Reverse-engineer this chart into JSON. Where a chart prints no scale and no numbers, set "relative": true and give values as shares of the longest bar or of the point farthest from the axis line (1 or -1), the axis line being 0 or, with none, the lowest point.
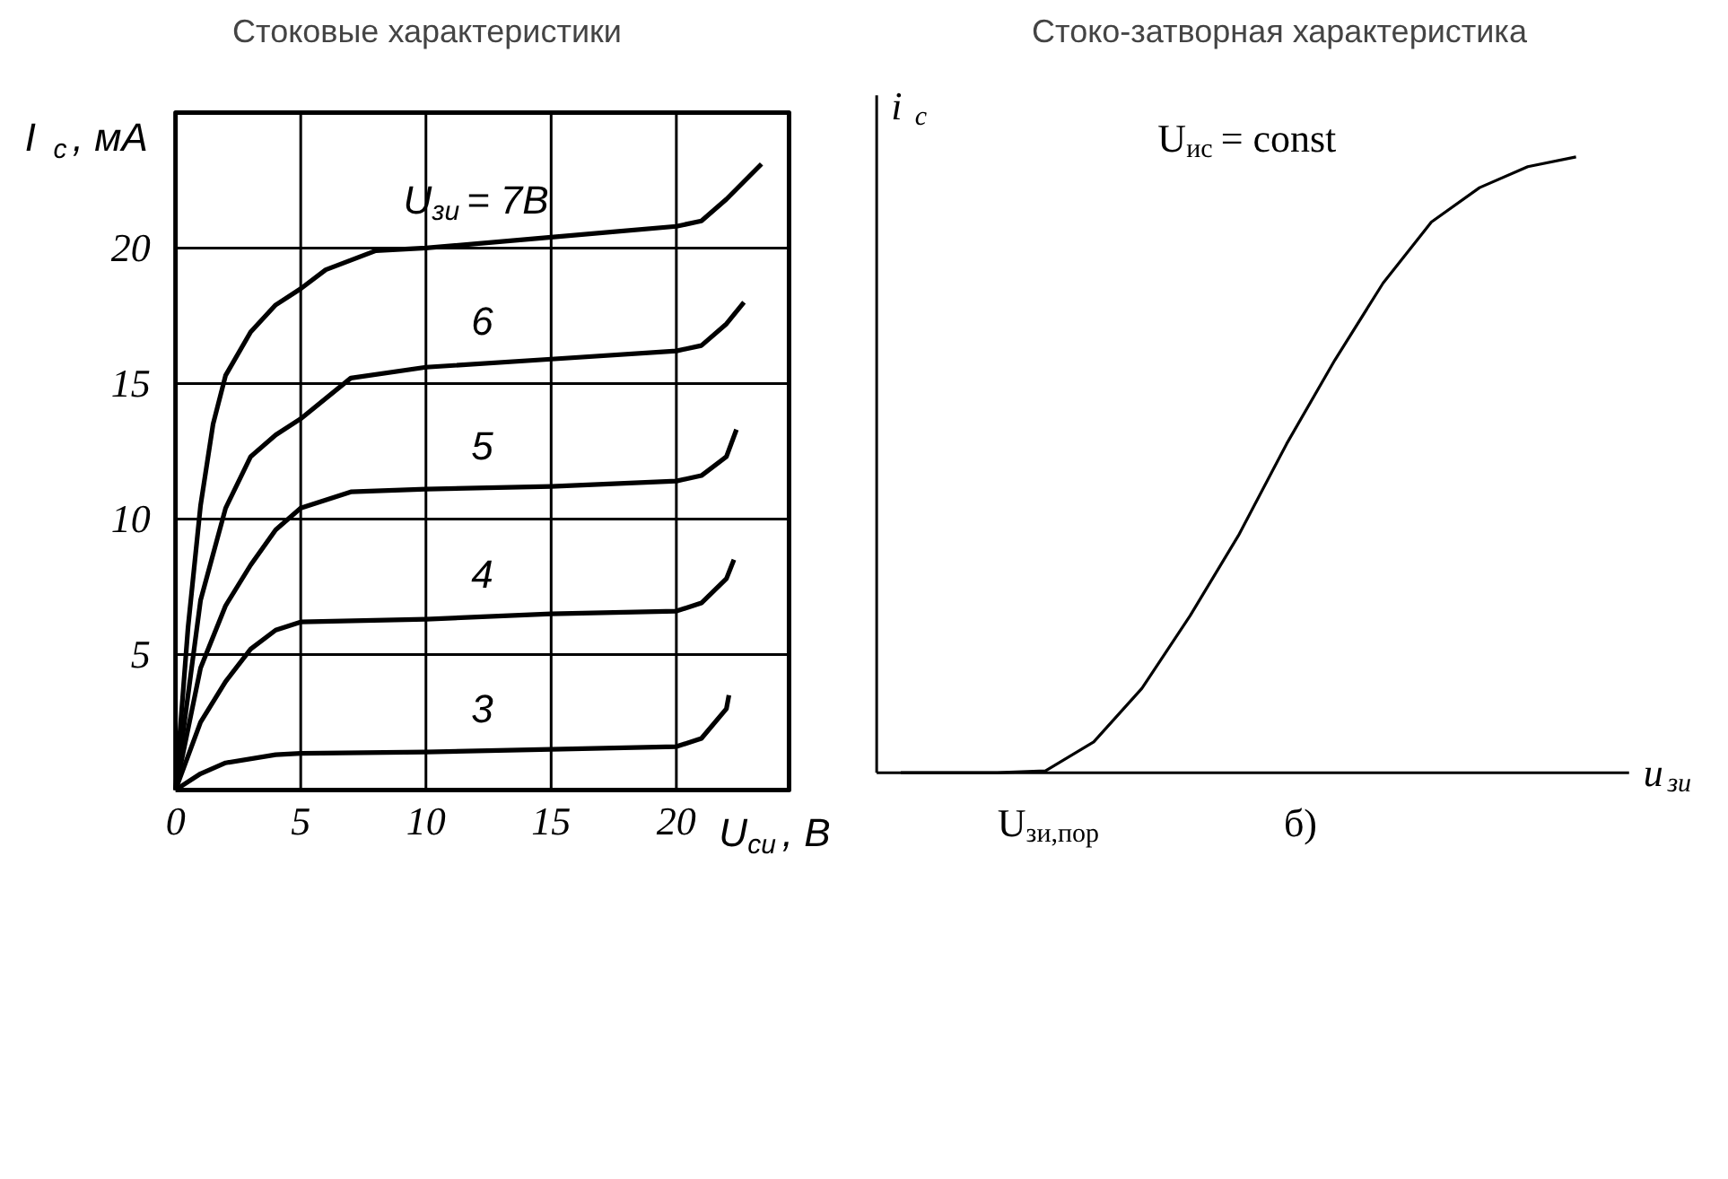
{
  "chart_data": [
    {
      "type": "line",
      "title": "Стоковые характеристики",
      "xlabel": "U$_{си}$, В",
      "ylabel": "I$_{c}$, мA",
      "xlim": [
        0,
        24.5
      ],
      "ylim": [
        0,
        25
      ],
      "xticks": [
        0,
        5,
        10,
        15,
        20
      ],
      "yticks": [
        5,
        10,
        15,
        20
      ],
      "grid": true,
      "series": [
        {
          "name": "U$_{зи}$ = 7В",
          "color": "#000000",
          "x": [
            0,
            0.5,
            1,
            1.5,
            2,
            3,
            4,
            5,
            6,
            8,
            10,
            15,
            20,
            21,
            22,
            23.4
          ],
          "values": [
            0,
            6,
            10.5,
            13.5,
            15.3,
            16.9,
            17.9,
            18.5,
            19.2,
            19.9,
            20,
            20.4,
            20.8,
            21,
            21.8,
            23.1
          ]
        },
        {
          "name": "6",
          "color": "#000000",
          "x": [
            0,
            1,
            2,
            3,
            4,
            5,
            7,
            10,
            15,
            20,
            21,
            22,
            22.7
          ],
          "values": [
            0,
            7,
            10.4,
            12.3,
            13.1,
            13.7,
            15.2,
            15.6,
            15.9,
            16.2,
            16.4,
            17.2,
            18
          ]
        },
        {
          "name": "5",
          "color": "#000000",
          "x": [
            0,
            1,
            2,
            3,
            4,
            5,
            7,
            10,
            15,
            20,
            21,
            22,
            22.4
          ],
          "values": [
            0,
            4.5,
            6.8,
            8.3,
            9.6,
            10.4,
            11,
            11.1,
            11.2,
            11.4,
            11.6,
            12.3,
            13.3
          ]
        },
        {
          "name": "4",
          "color": "#000000",
          "x": [
            0,
            1,
            2,
            3,
            4,
            5,
            10,
            15,
            20,
            21,
            22,
            22.3
          ],
          "values": [
            0,
            2.5,
            4,
            5.2,
            5.9,
            6.2,
            6.3,
            6.5,
            6.6,
            6.9,
            7.8,
            8.5
          ]
        },
        {
          "name": "3",
          "color": "#000000",
          "x": [
            0,
            1,
            2,
            4,
            5,
            10,
            15,
            20,
            21,
            22,
            22.1
          ],
          "values": [
            0,
            0.6,
            1,
            1.3,
            1.35,
            1.4,
            1.5,
            1.6,
            1.9,
            3,
            3.5
          ]
        }
      ]
    },
    {
      "type": "line",
      "title": "Стоко-затворная характеристика",
      "xlabel": "u$_{зи}$",
      "ylabel": "i$_{c}$",
      "relative": true,
      "categories": [
        null,
        null,
        null,
        null,
        null,
        null,
        null,
        null,
        null,
        null,
        null,
        null,
        null,
        null,
        null
      ],
      "series": [
        {
          "color": "#000000",
          "values": [
            0,
            0,
            0,
            0.003,
            0.05,
            0.137,
            0.255,
            0.385,
            0.534,
            0.67,
            0.795,
            0.894,
            0.95,
            0.984,
            1
          ]
        }
      ],
      "annotations": [
        "U$_{ис}$ = const",
        "U$_{зи,пор}$",
        "б)"
      ]
    }
  ]
}
